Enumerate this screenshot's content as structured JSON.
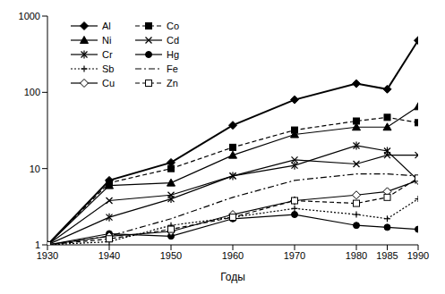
{
  "chart_data": {
    "type": "line",
    "x_label": "Годы",
    "x": [
      1930,
      1940,
      1950,
      1960,
      1970,
      1980,
      1985,
      1990
    ],
    "xlim": [
      1930,
      1990
    ],
    "xticks": [
      1930,
      1940,
      1950,
      1960,
      1970,
      1980,
      1985,
      1990
    ],
    "ylim": [
      1,
      1000
    ],
    "yticks": [
      1,
      10,
      100,
      1000
    ],
    "log": "y",
    "grid": false,
    "legend": "upper left",
    "series": [
      {
        "name": "Al",
        "color": "#000000",
        "marker": "diamond",
        "line_style": "solid",
        "values": [
          1,
          7,
          12,
          37,
          80,
          130,
          110,
          480
        ]
      },
      {
        "name": "Co",
        "color": "#000000",
        "marker": "square",
        "line_style": "dashed",
        "values": [
          1,
          6.5,
          10,
          19,
          32,
          42,
          47,
          40
        ]
      },
      {
        "name": "Ni",
        "color": "#000000",
        "marker": "triangle",
        "line_style": "solid",
        "values": [
          1,
          6,
          6.5,
          15,
          28,
          35,
          35,
          65
        ]
      },
      {
        "name": "Cd",
        "color": "#000000",
        "marker": "x",
        "line_style": "solid",
        "values": [
          1,
          3.8,
          4.5,
          8,
          13,
          11.5,
          15,
          15
        ]
      },
      {
        "name": "Cr",
        "color": "#000000",
        "marker": "asterisk",
        "line_style": "solid",
        "values": [
          1,
          2.3,
          4,
          8,
          11,
          20,
          17,
          7
        ]
      },
      {
        "name": "Hg",
        "color": "#000000",
        "marker": "circle",
        "line_style": "solid",
        "values": [
          1,
          1.4,
          1.3,
          2.2,
          2.5,
          1.8,
          1.7,
          1.6
        ]
      },
      {
        "name": "Sb",
        "color": "#000000",
        "marker": "plus",
        "line_style": "dotted",
        "values": [
          1,
          1.1,
          1.8,
          2.3,
          3,
          2.5,
          2.2,
          4
        ]
      },
      {
        "name": "Fe",
        "color": "#000000",
        "marker": "none",
        "line_style": "dashdot",
        "values": [
          1,
          1.3,
          2.2,
          4.2,
          7,
          8.5,
          8.5,
          8
        ]
      },
      {
        "name": "Cu",
        "color": "#000000",
        "marker": "open_diamond",
        "line_style": "solid",
        "values": [
          1,
          1.3,
          1.5,
          2.5,
          3.8,
          4.5,
          5,
          7
        ]
      },
      {
        "name": "Zn",
        "color": "#000000",
        "marker": "open_square",
        "line_style": "dashed",
        "values": [
          1,
          1.2,
          1.6,
          2.3,
          3.8,
          3.5,
          4.2,
          7.5
        ]
      }
    ]
  }
}
